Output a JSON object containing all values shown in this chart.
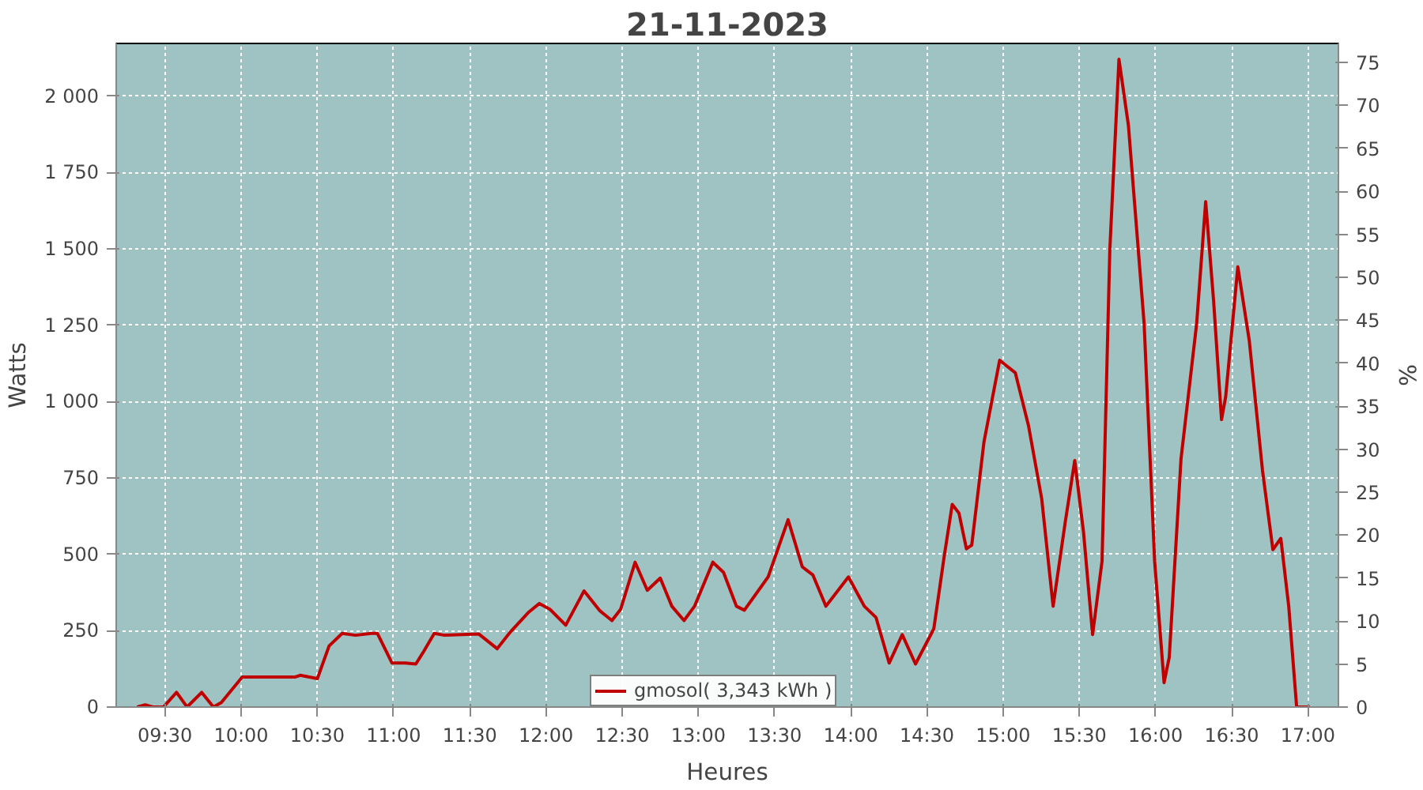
{
  "chart_data": {
    "type": "line",
    "title": "21-11-2023",
    "xlabel": "Heures",
    "ylabel": "Watts",
    "y2label": "%",
    "x": [
      9.317,
      9.37,
      9.42,
      9.49,
      9.576,
      9.645,
      9.741,
      9.818,
      9.87,
      10.007,
      10.093,
      10.352,
      10.387,
      10.5,
      10.577,
      10.663,
      10.75,
      10.853,
      10.894,
      10.99,
      11.077,
      11.146,
      11.198,
      11.267,
      11.335,
      11.56,
      11.68,
      11.767,
      11.888,
      11.957,
      12.026,
      12.13,
      12.25,
      12.354,
      12.433,
      12.49,
      12.585,
      12.665,
      12.75,
      12.826,
      12.906,
      12.975,
      13.095,
      13.165,
      13.25,
      13.302,
      13.458,
      13.589,
      13.682,
      13.752,
      13.837,
      13.985,
      14.089,
      14.166,
      14.252,
      14.338,
      14.425,
      14.545,
      14.614,
      14.666,
      14.71,
      14.759,
      14.794,
      14.874,
      14.977,
      15.08,
      15.166,
      15.253,
      15.328,
      15.408,
      15.47,
      15.528,
      15.587,
      15.649,
      15.7,
      15.76,
      15.822,
      15.925,
      15.994,
      16.056,
      16.09,
      16.167,
      16.27,
      16.329,
      16.381,
      16.433,
      16.46,
      16.54,
      16.615,
      16.702,
      16.77,
      16.822,
      16.874,
      16.926,
      17.013
    ],
    "series": [
      {
        "name": "gmosol( 3,343 kWh )",
        "color": "#c00000",
        "values": [
          0,
          7,
          0,
          0,
          48,
          0,
          48,
          0,
          15,
          98,
          98,
          98,
          104,
          93,
          200,
          241,
          235,
          241,
          241,
          144,
          144,
          141,
          182,
          241,
          235,
          239,
          191,
          246,
          311,
          339,
          320,
          268,
          380,
          315,
          283,
          320,
          474,
          382,
          422,
          330,
          283,
          330,
          474,
          441,
          330,
          317,
          426,
          613,
          459,
          432,
          330,
          426,
          330,
          293,
          144,
          237,
          141,
          256,
          496,
          663,
          635,
          518,
          530,
          867,
          1135,
          1094,
          922,
          682,
          330,
          607,
          807,
          570,
          237,
          478,
          1496,
          2120,
          1904,
          1256,
          478,
          80,
          163,
          811,
          1256,
          1654,
          1330,
          941,
          1015,
          1441,
          1200,
          774,
          515,
          552,
          330,
          0,
          0
        ]
      }
    ],
    "xlim": [
      9.18,
      17.2
    ],
    "ylim": [
      0,
      2172
    ],
    "y2lim": [
      0,
      77.2
    ],
    "xticks": [
      {
        "value": 9.5,
        "label": "09:30"
      },
      {
        "value": 10,
        "label": "10:00"
      },
      {
        "value": 10.5,
        "label": "10:30"
      },
      {
        "value": 11,
        "label": "11:00"
      },
      {
        "value": 11.5,
        "label": "11:30"
      },
      {
        "value": 12,
        "label": "12:00"
      },
      {
        "value": 12.5,
        "label": "12:30"
      },
      {
        "value": 13,
        "label": "13:00"
      },
      {
        "value": 13.5,
        "label": "13:30"
      },
      {
        "value": 14,
        "label": "14:00"
      },
      {
        "value": 14.5,
        "label": "14:30"
      },
      {
        "value": 15,
        "label": "15:00"
      },
      {
        "value": 15.5,
        "label": "15:30"
      },
      {
        "value": 16,
        "label": "16:00"
      },
      {
        "value": 16.5,
        "label": "16:30"
      },
      {
        "value": 17,
        "label": "17:00"
      }
    ],
    "yticks": [
      0,
      250,
      500,
      750,
      {
        "value": 1000,
        "label": "1 000"
      },
      {
        "value": 1250,
        "label": "1 250"
      },
      {
        "value": 1500,
        "label": "1 500"
      },
      {
        "value": 1750,
        "label": "1 750"
      },
      {
        "value": 2000,
        "label": "2 000"
      }
    ],
    "y2ticks": [
      0,
      5,
      10,
      15,
      20,
      25,
      30,
      35,
      40,
      45,
      50,
      55,
      60,
      65,
      70,
      75
    ],
    "grid": true,
    "legend": "bottom",
    "marker": "none",
    "line_style": "solid"
  }
}
